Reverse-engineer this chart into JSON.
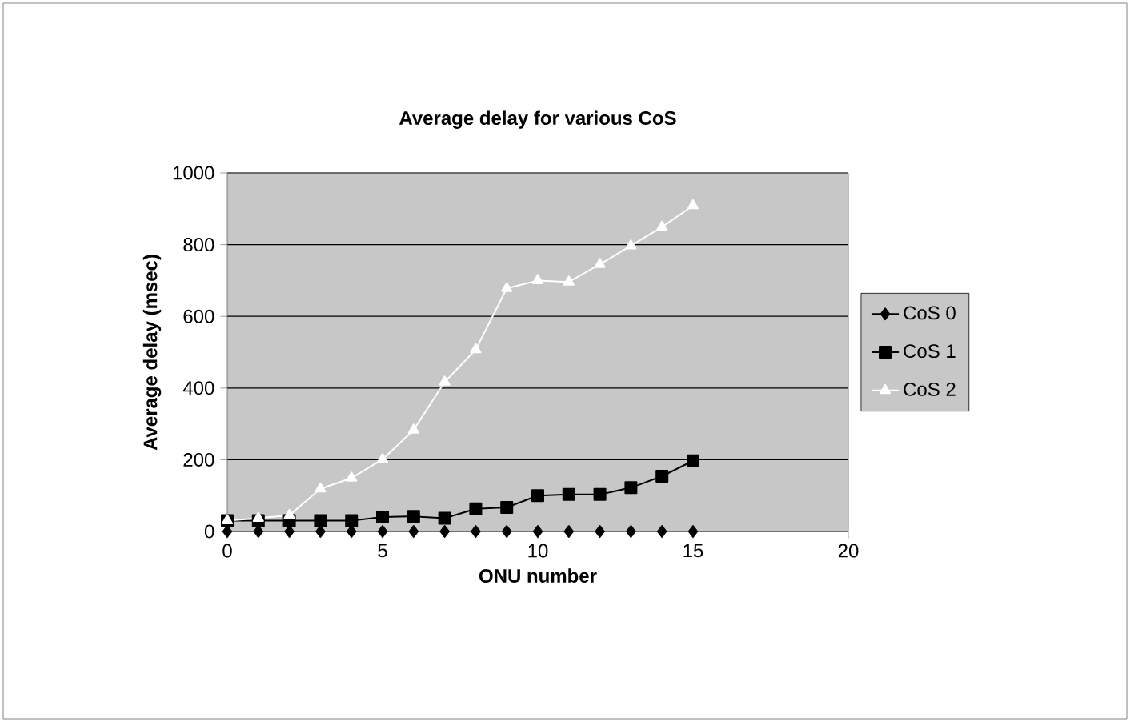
{
  "chart_data": {
    "type": "line",
    "title": "Average delay for various CoS",
    "xlabel": "ONU number",
    "ylabel": "Average delay (msec)",
    "x": [
      0,
      1,
      2,
      3,
      4,
      5,
      6,
      7,
      8,
      9,
      10,
      11,
      12,
      13,
      14,
      15
    ],
    "series": [
      {
        "name": "CoS 0",
        "color": "#000000",
        "marker": "diamond",
        "values": [
          0,
          0,
          0,
          0,
          0,
          0,
          0,
          0,
          0,
          0,
          0,
          0,
          0,
          0,
          0,
          0
        ]
      },
      {
        "name": "CoS 1",
        "color": "#000000",
        "marker": "square",
        "values": [
          30,
          30,
          30,
          30,
          30,
          40,
          42,
          37,
          63,
          67,
          100,
          103,
          103,
          122,
          154,
          197
        ]
      },
      {
        "name": "CoS 2",
        "color": "#ffffff",
        "marker": "triangle",
        "values": [
          30,
          37,
          45,
          119,
          149,
          201,
          283,
          417,
          507,
          678,
          700,
          696,
          745,
          797,
          849,
          909
        ]
      }
    ],
    "xlim": [
      0,
      20
    ],
    "xticks": [
      0,
      5,
      10,
      15,
      20
    ],
    "ylim": [
      0,
      1000
    ],
    "yticks": [
      0,
      200,
      400,
      600,
      800,
      1000
    ],
    "grid": "y",
    "legend": "right"
  }
}
